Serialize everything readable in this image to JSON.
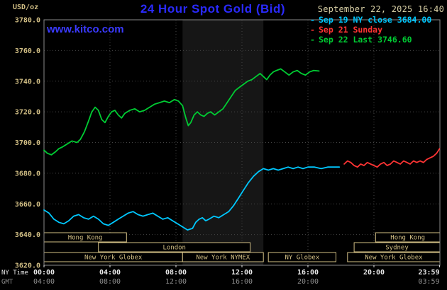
{
  "header": {
    "units_label": "USD/oz",
    "title": "24 Hour Spot Gold (Bid)",
    "watermark": "www.kitco.com",
    "timestamp": "September 22, 2025 16:40"
  },
  "legend": [
    {
      "label": "Sep 19 NY close 3684.00",
      "color": "#00c8ff"
    },
    {
      "label": "Sep 21 Sunday",
      "color": "#ff3434"
    },
    {
      "label": "Sep 22 Last 3746.60",
      "color": "#00cc33"
    }
  ],
  "colors": {
    "background": "#000000",
    "title_blue": "#2a2aff",
    "watermark_blue": "#3a3aff",
    "tan": "#d2bf85",
    "timestamp_tan": "#d9d0a6",
    "ny_white": "#e8e8e8",
    "gmt_gray": "#8f8f8f",
    "grid": "#444444",
    "border": "#8a8a8a",
    "band": "#161616",
    "cyan": "#00c8ff",
    "red": "#ff3434",
    "green": "#00cc33"
  },
  "axes": {
    "ny_label": "NY Time",
    "gmt_label": "GMT",
    "y_ticks": [
      {
        "v": 3780,
        "label": "3780.0"
      },
      {
        "v": 3760,
        "label": "3760.0"
      },
      {
        "v": 3740,
        "label": "3740.0"
      },
      {
        "v": 3720,
        "label": "3720.0"
      },
      {
        "v": 3700,
        "label": "3700.0"
      },
      {
        "v": 3680,
        "label": "3680.0"
      },
      {
        "v": 3660,
        "label": "3660.0"
      },
      {
        "v": 3640,
        "label": "3640.0"
      },
      {
        "v": 3620,
        "label": "3620.0"
      }
    ],
    "x_ticks_ny": [
      {
        "t": 0,
        "label": "00:00"
      },
      {
        "t": 4,
        "label": "04:00"
      },
      {
        "t": 8,
        "label": "08:00"
      },
      {
        "t": 12,
        "label": "12:00"
      },
      {
        "t": 16,
        "label": "16:00"
      },
      {
        "t": 20,
        "label": "20:00"
      },
      {
        "t": 23.983,
        "label": "23:59"
      }
    ],
    "x_ticks_gmt": [
      {
        "t": 0,
        "label": "04:00"
      },
      {
        "t": 4,
        "label": "08:00"
      },
      {
        "t": 8,
        "label": "12:00"
      },
      {
        "t": 12,
        "label": "16:00"
      },
      {
        "t": 16,
        "label": "20:00"
      },
      {
        "t": 23.983,
        "label": "03:59"
      }
    ]
  },
  "sessions": [
    {
      "row": 0,
      "t0": 0,
      "t1": 5.0,
      "label": "Hong Kong"
    },
    {
      "row": 0,
      "t0": 20.1,
      "t1": 24,
      "label": "Hong Kong"
    },
    {
      "row": 1,
      "t0": 3.3,
      "t1": 12.5,
      "label": "London"
    },
    {
      "row": 1,
      "t0": 18.8,
      "t1": 24,
      "label": "Sydney"
    },
    {
      "row": 2,
      "t0": 0,
      "t1": 8.4,
      "label": "New York Globex"
    },
    {
      "row": 2,
      "t0": 8.4,
      "t1": 13.3,
      "label": "New York NYMEX"
    },
    {
      "row": 2,
      "t0": 13.6,
      "t1": 17.7,
      "label": "NY Globex"
    },
    {
      "row": 2,
      "t0": 18.4,
      "t1": 24,
      "label": "New York Globex"
    }
  ],
  "chart_data": {
    "type": "line",
    "title": "24 Hour Spot Gold (Bid)",
    "xlabel": "NY Time (hours)",
    "ylabel": "USD/oz",
    "xlim": [
      0,
      24
    ],
    "ylim": [
      3620,
      3780
    ],
    "y_tick_step": 20,
    "grid": true,
    "legend_position": "top-right",
    "shaded_band": {
      "t0": 8.4,
      "t1": 13.3
    },
    "series": [
      {
        "name": "Sep 22 Last 3746.60",
        "color_key": "green",
        "points": [
          [
            0,
            3695
          ],
          [
            0.2,
            3693
          ],
          [
            0.45,
            3692
          ],
          [
            0.7,
            3694
          ],
          [
            0.9,
            3696
          ],
          [
            1.1,
            3697
          ],
          [
            1.4,
            3699
          ],
          [
            1.7,
            3701
          ],
          [
            2,
            3700
          ],
          [
            2.2,
            3702
          ],
          [
            2.45,
            3707
          ],
          [
            2.7,
            3714
          ],
          [
            2.9,
            3720
          ],
          [
            3.1,
            3723
          ],
          [
            3.3,
            3721
          ],
          [
            3.5,
            3715
          ],
          [
            3.7,
            3713
          ],
          [
            3.9,
            3717
          ],
          [
            4.1,
            3720
          ],
          [
            4.3,
            3721
          ],
          [
            4.5,
            3718
          ],
          [
            4.7,
            3716
          ],
          [
            4.9,
            3719
          ],
          [
            5.2,
            3721
          ],
          [
            5.5,
            3722
          ],
          [
            5.8,
            3720
          ],
          [
            6.1,
            3721
          ],
          [
            6.4,
            3723
          ],
          [
            6.7,
            3725
          ],
          [
            7,
            3726
          ],
          [
            7.3,
            3727
          ],
          [
            7.6,
            3726
          ],
          [
            7.9,
            3728
          ],
          [
            8.15,
            3727
          ],
          [
            8.4,
            3724
          ],
          [
            8.6,
            3716
          ],
          [
            8.75,
            3711
          ],
          [
            8.9,
            3713
          ],
          [
            9.1,
            3718
          ],
          [
            9.3,
            3720
          ],
          [
            9.5,
            3718
          ],
          [
            9.7,
            3717
          ],
          [
            9.9,
            3719
          ],
          [
            10.1,
            3720
          ],
          [
            10.35,
            3718
          ],
          [
            10.6,
            3720
          ],
          [
            10.85,
            3722
          ],
          [
            11.1,
            3726
          ],
          [
            11.35,
            3730
          ],
          [
            11.6,
            3734
          ],
          [
            11.85,
            3736
          ],
          [
            12.1,
            3738
          ],
          [
            12.35,
            3740
          ],
          [
            12.6,
            3741
          ],
          [
            12.85,
            3743
          ],
          [
            13.1,
            3745
          ],
          [
            13.3,
            3743
          ],
          [
            13.5,
            3741
          ],
          [
            13.7,
            3744
          ],
          [
            13.9,
            3746
          ],
          [
            14.1,
            3747
          ],
          [
            14.35,
            3748
          ],
          [
            14.6,
            3746
          ],
          [
            14.85,
            3744
          ],
          [
            15.1,
            3746
          ],
          [
            15.35,
            3747
          ],
          [
            15.6,
            3745
          ],
          [
            15.85,
            3744
          ],
          [
            16.1,
            3746
          ],
          [
            16.35,
            3747
          ],
          [
            16.67,
            3746.6
          ]
        ]
      },
      {
        "name": "Sep 19 NY close 3684.00",
        "color_key": "cyan",
        "points": [
          [
            0,
            3656
          ],
          [
            0.3,
            3654
          ],
          [
            0.6,
            3650
          ],
          [
            0.9,
            3648
          ],
          [
            1.2,
            3647
          ],
          [
            1.5,
            3649
          ],
          [
            1.8,
            3652
          ],
          [
            2.1,
            3653
          ],
          [
            2.4,
            3651
          ],
          [
            2.7,
            3650
          ],
          [
            3,
            3652
          ],
          [
            3.3,
            3650
          ],
          [
            3.6,
            3647
          ],
          [
            3.9,
            3646
          ],
          [
            4.2,
            3648
          ],
          [
            4.5,
            3650
          ],
          [
            4.8,
            3652
          ],
          [
            5.1,
            3654
          ],
          [
            5.4,
            3655
          ],
          [
            5.7,
            3653
          ],
          [
            6,
            3652
          ],
          [
            6.3,
            3653
          ],
          [
            6.6,
            3654
          ],
          [
            6.9,
            3652
          ],
          [
            7.2,
            3650
          ],
          [
            7.5,
            3651
          ],
          [
            7.8,
            3649
          ],
          [
            8.1,
            3647
          ],
          [
            8.4,
            3645
          ],
          [
            8.7,
            3643
          ],
          [
            9,
            3644
          ],
          [
            9.2,
            3648
          ],
          [
            9.4,
            3650
          ],
          [
            9.6,
            3651
          ],
          [
            9.8,
            3649
          ],
          [
            10,
            3650
          ],
          [
            10.3,
            3652
          ],
          [
            10.6,
            3651
          ],
          [
            10.9,
            3653
          ],
          [
            11.2,
            3655
          ],
          [
            11.5,
            3659
          ],
          [
            11.8,
            3664
          ],
          [
            12.1,
            3669
          ],
          [
            12.4,
            3674
          ],
          [
            12.7,
            3678
          ],
          [
            13,
            3681
          ],
          [
            13.3,
            3683
          ],
          [
            13.6,
            3682
          ],
          [
            13.9,
            3683
          ],
          [
            14.2,
            3682
          ],
          [
            14.5,
            3683
          ],
          [
            14.8,
            3684
          ],
          [
            15.1,
            3683
          ],
          [
            15.4,
            3684
          ],
          [
            15.7,
            3683
          ],
          [
            16,
            3684
          ],
          [
            16.4,
            3684
          ],
          [
            16.8,
            3683
          ],
          [
            17.2,
            3684
          ],
          [
            17.6,
            3684
          ],
          [
            17.9,
            3684
          ]
        ]
      },
      {
        "name": "Sep 21 Sunday",
        "color_key": "red",
        "points": [
          [
            18.2,
            3686
          ],
          [
            18.4,
            3688
          ],
          [
            18.6,
            3687
          ],
          [
            18.8,
            3685
          ],
          [
            19,
            3684
          ],
          [
            19.2,
            3686
          ],
          [
            19.4,
            3685
          ],
          [
            19.6,
            3687
          ],
          [
            19.8,
            3686
          ],
          [
            20,
            3685
          ],
          [
            20.2,
            3684
          ],
          [
            20.4,
            3686
          ],
          [
            20.6,
            3687
          ],
          [
            20.8,
            3685
          ],
          [
            21,
            3686
          ],
          [
            21.2,
            3688
          ],
          [
            21.4,
            3687
          ],
          [
            21.6,
            3686
          ],
          [
            21.8,
            3688
          ],
          [
            22,
            3687
          ],
          [
            22.2,
            3686
          ],
          [
            22.4,
            3688
          ],
          [
            22.6,
            3687
          ],
          [
            22.8,
            3688
          ],
          [
            23,
            3687
          ],
          [
            23.2,
            3689
          ],
          [
            23.4,
            3690
          ],
          [
            23.6,
            3691
          ],
          [
            23.8,
            3693
          ],
          [
            23.98,
            3696
          ]
        ]
      }
    ]
  }
}
